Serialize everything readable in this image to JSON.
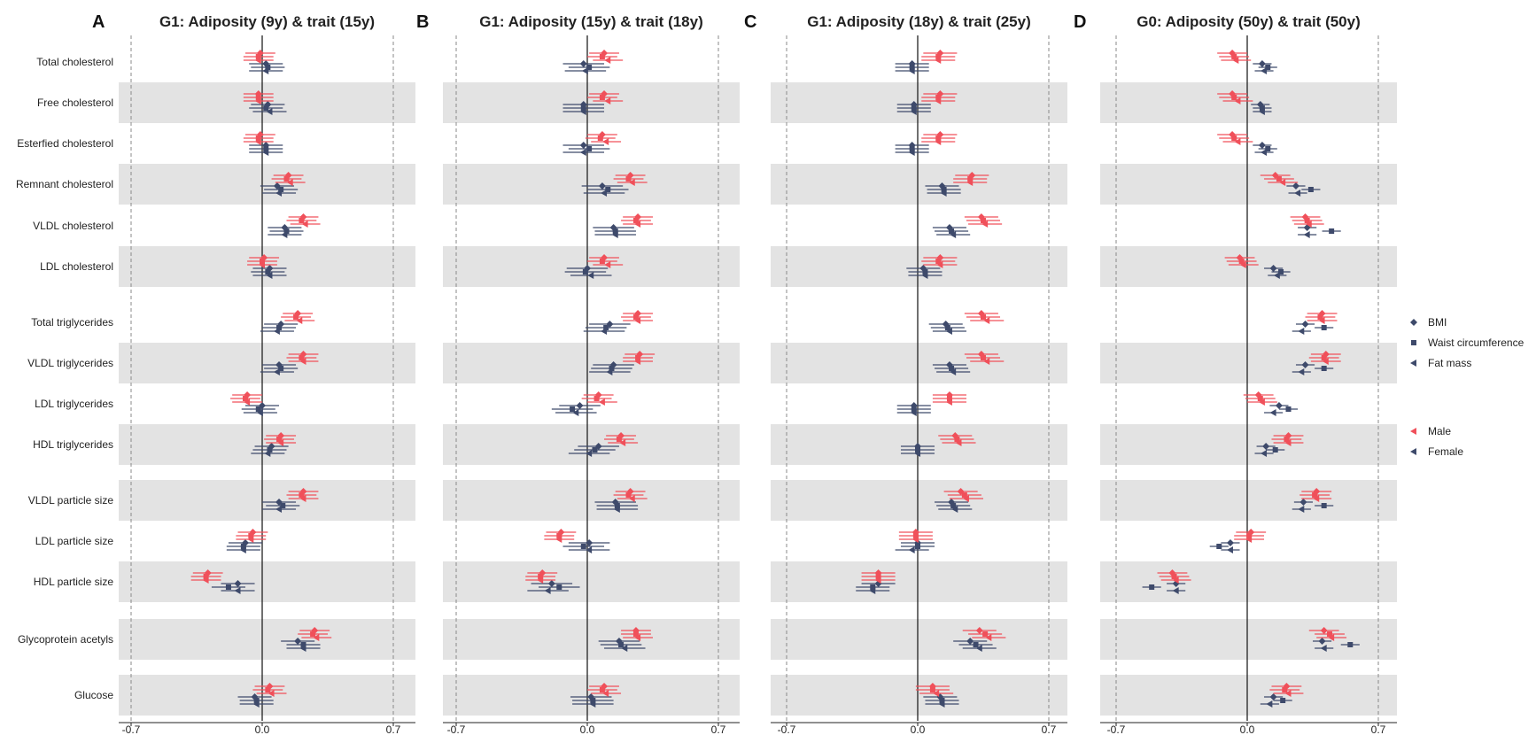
{
  "chart_data": {
    "type": "forest",
    "colors": {
      "male": "#f0505a",
      "female": "#3e4a6b",
      "band": "#e3e3e3",
      "axis": "#222222",
      "ref": "#888888"
    },
    "xlim": [
      -0.8,
      0.8
    ],
    "xticks": [
      -0.7,
      0.0,
      0.7
    ],
    "xtick_labels": [
      "-0.7",
      "0.0",
      "0.7"
    ],
    "traits": [
      "Total cholesterol",
      "Free cholesterol",
      "Esterfied cholesterol",
      "Remnant cholesterol",
      "VLDL cholesterol",
      "LDL cholesterol",
      "Total triglycerides",
      "VLDL triglycerides",
      "LDL triglycerides",
      "HDL triglycerides",
      "VLDL particle size",
      "LDL particle size",
      "HDL particle size",
      "Glycoprotein acetyls",
      "Glucose"
    ],
    "groups": [
      6,
      4,
      3,
      1,
      1
    ],
    "legend": {
      "exposures": [
        {
          "label": "BMI",
          "marker": "diamond"
        },
        {
          "label": "Waist circumference",
          "marker": "square"
        },
        {
          "label": "Fat mass",
          "marker": "triangle"
        }
      ],
      "sexes": [
        {
          "label": "Male",
          "key": "male"
        },
        {
          "label": "Female",
          "key": "female"
        }
      ]
    },
    "panels": [
      {
        "letter": "A",
        "title": "G1: Adiposity (9y) & trait (15y)",
        "male": [
          [
            -0.01,
            -0.02,
            -0.02
          ],
          [
            -0.02,
            -0.02,
            -0.02
          ],
          [
            -0.01,
            -0.02,
            -0.02
          ],
          [
            0.14,
            0.13,
            0.15
          ],
          [
            0.22,
            0.21,
            0.23
          ],
          [
            0.01,
            0.0,
            0.0
          ],
          [
            0.19,
            0.18,
            0.2
          ],
          [
            0.22,
            0.21,
            0.22
          ],
          [
            -0.08,
            -0.09,
            -0.08
          ],
          [
            0.1,
            0.09,
            0.1
          ],
          [
            0.22,
            0.21,
            0.22
          ],
          [
            -0.05,
            -0.06,
            -0.06
          ],
          [
            -0.29,
            -0.3,
            -0.3
          ],
          [
            0.28,
            0.27,
            0.29
          ],
          [
            0.04,
            0.03,
            0.05
          ]
        ],
        "female": [
          [
            0.02,
            0.03,
            0.02
          ],
          [
            0.03,
            0.02,
            0.04
          ],
          [
            0.02,
            0.02,
            0.02
          ],
          [
            0.08,
            0.1,
            0.09
          ],
          [
            0.12,
            0.13,
            0.12
          ],
          [
            0.04,
            0.03,
            0.04
          ],
          [
            0.1,
            0.09,
            0.08
          ],
          [
            0.09,
            0.1,
            0.08
          ],
          [
            0.0,
            -0.02,
            -0.01
          ],
          [
            0.05,
            0.04,
            0.03
          ],
          [
            0.09,
            0.11,
            0.09
          ],
          [
            -0.09,
            -0.1,
            -0.1
          ],
          [
            -0.13,
            -0.18,
            -0.13
          ],
          [
            0.19,
            0.22,
            0.22
          ],
          [
            -0.04,
            -0.03,
            -0.03
          ]
        ],
        "male_err": 0.08,
        "female_err": 0.09
      },
      {
        "letter": "B",
        "title": "G1: Adiposity (15y) & trait (18y)",
        "male": [
          [
            0.09,
            0.08,
            0.11
          ],
          [
            0.09,
            0.08,
            0.11
          ],
          [
            0.08,
            0.07,
            0.1
          ],
          [
            0.23,
            0.22,
            0.24
          ],
          [
            0.27,
            0.26,
            0.27
          ],
          [
            0.09,
            0.08,
            0.11
          ],
          [
            0.27,
            0.26,
            0.27
          ],
          [
            0.28,
            0.27,
            0.27
          ],
          [
            0.06,
            0.05,
            0.08
          ],
          [
            0.18,
            0.17,
            0.19
          ],
          [
            0.23,
            0.22,
            0.24
          ],
          [
            -0.14,
            -0.15,
            -0.15
          ],
          [
            -0.24,
            -0.25,
            -0.25
          ],
          [
            0.26,
            0.26,
            0.27
          ],
          [
            0.09,
            0.08,
            0.1
          ]
        ],
        "female": [
          [
            -0.02,
            0.01,
            -0.01
          ],
          [
            -0.02,
            -0.02,
            -0.02
          ],
          [
            -0.02,
            0.01,
            -0.02
          ],
          [
            0.08,
            0.11,
            0.09
          ],
          [
            0.14,
            0.15,
            0.15
          ],
          [
            0.0,
            -0.01,
            0.02
          ],
          [
            0.12,
            0.1,
            0.09
          ],
          [
            0.14,
            0.13,
            0.12
          ],
          [
            -0.04,
            -0.08,
            -0.06
          ],
          [
            0.06,
            0.04,
            0.01
          ],
          [
            0.15,
            0.16,
            0.16
          ],
          [
            0.01,
            -0.02,
            0.01
          ],
          [
            -0.19,
            -0.15,
            -0.21
          ],
          [
            0.17,
            0.18,
            0.2
          ],
          [
            0.02,
            0.03,
            0.03
          ]
        ],
        "male_err": 0.08,
        "female_err": 0.11
      },
      {
        "letter": "C",
        "title": "G1: Adiposity (18y) & trait (25y)",
        "male": [
          [
            0.12,
            0.11,
            0.11
          ],
          [
            0.12,
            0.11,
            0.11
          ],
          [
            0.12,
            0.11,
            0.11
          ],
          [
            0.29,
            0.28,
            0.28
          ],
          [
            0.34,
            0.35,
            0.36
          ],
          [
            0.12,
            0.11,
            0.12
          ],
          [
            0.34,
            0.35,
            0.37
          ],
          [
            0.34,
            0.35,
            0.37
          ],
          [
            0.17,
            0.17,
            0.17
          ],
          [
            0.2,
            0.21,
            0.22
          ],
          [
            0.23,
            0.25,
            0.26
          ],
          [
            -0.01,
            -0.01,
            -0.01
          ],
          [
            -0.21,
            -0.21,
            -0.21
          ],
          [
            0.33,
            0.36,
            0.38
          ],
          [
            0.08,
            0.08,
            0.1
          ]
        ],
        "female": [
          [
            -0.03,
            -0.03,
            -0.03
          ],
          [
            -0.02,
            -0.02,
            -0.02
          ],
          [
            -0.03,
            -0.03,
            -0.03
          ],
          [
            0.13,
            0.14,
            0.14
          ],
          [
            0.17,
            0.18,
            0.19
          ],
          [
            0.03,
            0.04,
            0.04
          ],
          [
            0.15,
            0.16,
            0.17
          ],
          [
            0.17,
            0.18,
            0.19
          ],
          [
            -0.02,
            -0.02,
            -0.02
          ],
          [
            0.0,
            0.0,
            0.0
          ],
          [
            0.18,
            0.19,
            0.2
          ],
          [
            0.0,
            0.0,
            -0.03
          ],
          [
            -0.21,
            -0.24,
            -0.24
          ],
          [
            0.28,
            0.31,
            0.33
          ],
          [
            0.12,
            0.13,
            0.13
          ]
        ],
        "male_err": 0.09,
        "female_err": 0.09
      },
      {
        "letter": "D",
        "title": "G0: Adiposity (50y) & trait (50y)",
        "male": [
          [
            -0.08,
            -0.07,
            -0.06
          ],
          [
            -0.08,
            -0.07,
            -0.05
          ],
          [
            -0.08,
            -0.07,
            -0.05
          ],
          [
            0.15,
            0.17,
            0.19
          ],
          [
            0.31,
            0.32,
            0.33
          ],
          [
            -0.04,
            -0.03,
            -0.02
          ],
          [
            0.4,
            0.39,
            0.4
          ],
          [
            0.42,
            0.41,
            0.42
          ],
          [
            0.06,
            0.07,
            0.08
          ],
          [
            0.22,
            0.21,
            0.22
          ],
          [
            0.37,
            0.36,
            0.37
          ],
          [
            0.02,
            0.01,
            0.01
          ],
          [
            -0.4,
            -0.39,
            -0.38
          ],
          [
            0.41,
            0.44,
            0.45
          ],
          [
            0.21,
            0.2,
            0.22
          ]
        ],
        "female": [
          [
            0.08,
            0.11,
            0.09
          ],
          [
            0.07,
            0.08,
            0.08
          ],
          [
            0.08,
            0.11,
            0.09
          ],
          [
            0.26,
            0.34,
            0.27
          ],
          [
            0.32,
            0.45,
            0.32
          ],
          [
            0.14,
            0.18,
            0.16
          ],
          [
            0.31,
            0.41,
            0.29
          ],
          [
            0.31,
            0.41,
            0.29
          ],
          [
            0.17,
            0.22,
            0.14
          ],
          [
            0.1,
            0.15,
            0.09
          ],
          [
            0.3,
            0.41,
            0.29
          ],
          [
            -0.09,
            -0.15,
            -0.09
          ],
          [
            -0.38,
            -0.51,
            -0.38
          ],
          [
            0.4,
            0.55,
            0.41
          ],
          [
            0.14,
            0.19,
            0.12
          ]
        ],
        "male_err": 0.08,
        "female_err": 0.05
      }
    ]
  }
}
